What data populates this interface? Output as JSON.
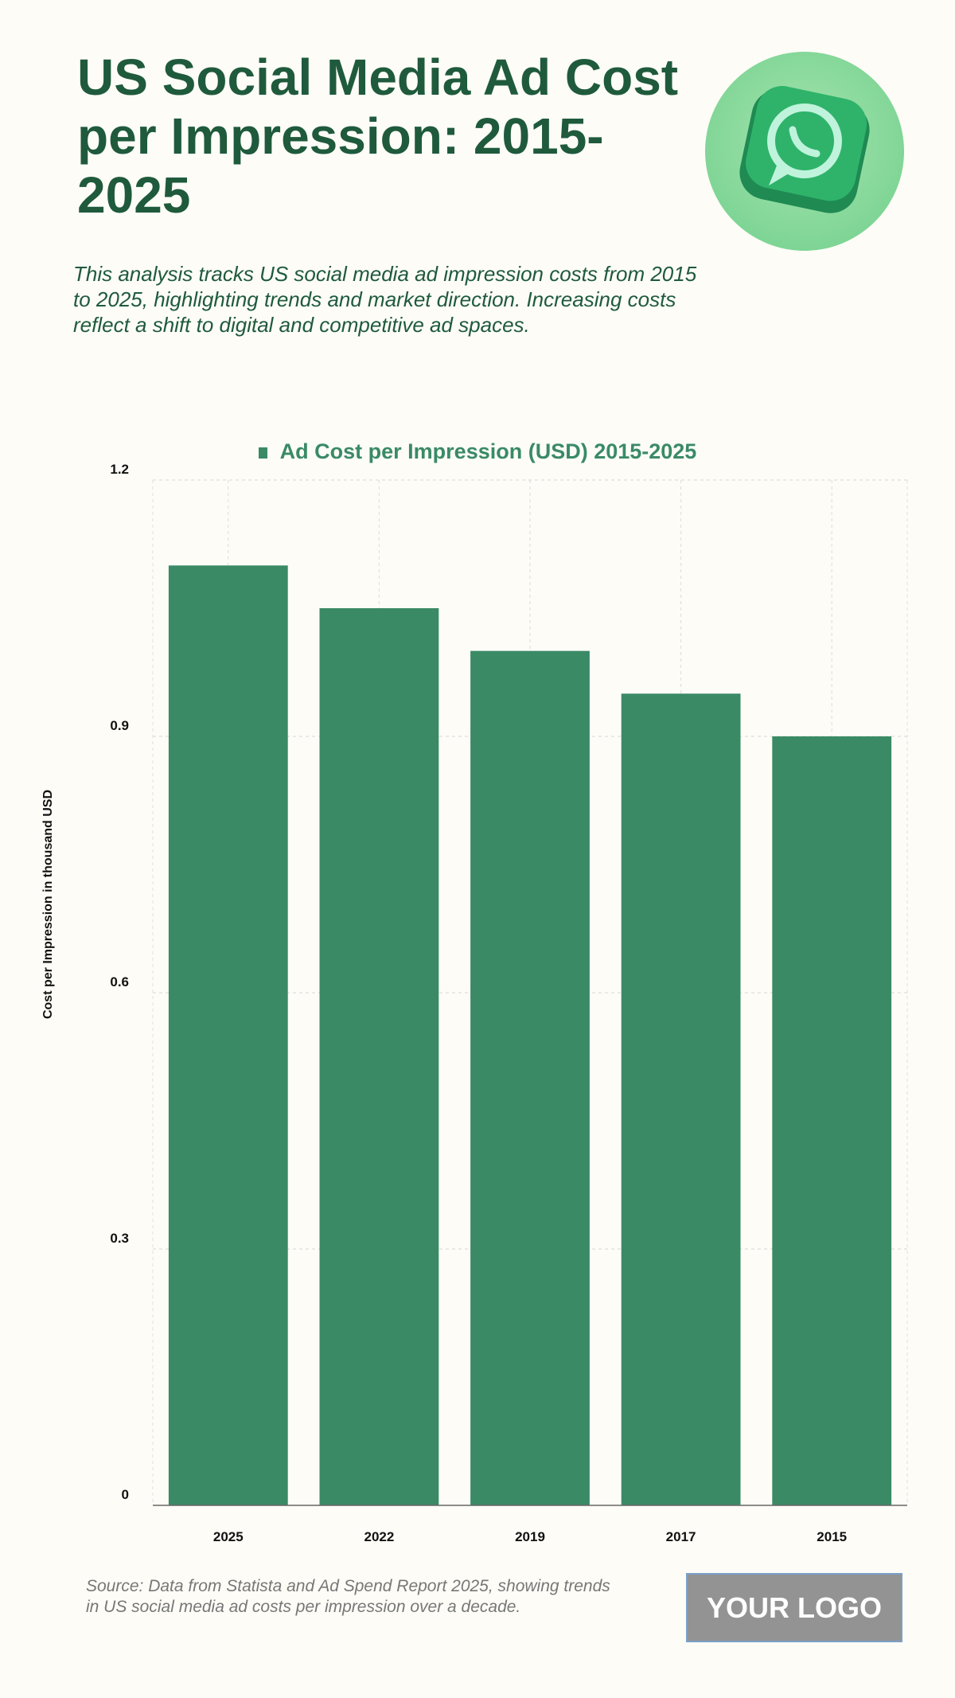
{
  "header": {
    "title": "US Social Media Ad Cost per Impression: 2015-2025",
    "subtitle": "This analysis tracks US social media ad impression costs from 2015 to 2025, highlighting trends and market direction. Increasing costs reflect a shift to digital and competitive ad spaces.",
    "icon": "whatsapp-3d-icon"
  },
  "chart_data": {
    "type": "bar",
    "categories": [
      "2025",
      "2022",
      "2019",
      "2017",
      "2015"
    ],
    "series": [
      {
        "name": "Ad Cost per Impression (USD) 2015-2025",
        "values": [
          1.1,
          1.05,
          1.0,
          0.95,
          0.9
        ],
        "color": "#3a8a66"
      }
    ],
    "xlabel": "",
    "ylabel": "Cost per Impression in thousand USD",
    "ylim": [
      0,
      1.2
    ],
    "yticks": [
      "0",
      "0.3",
      "0.6",
      "0.9",
      "1.2"
    ],
    "grid": true,
    "legend": "top-center"
  },
  "footer": {
    "source": "Source: Data from Statista and Ad Spend Report 2025, showing trends in US social media ad costs per impression over a decade.",
    "logo": "YOUR LOGO"
  }
}
